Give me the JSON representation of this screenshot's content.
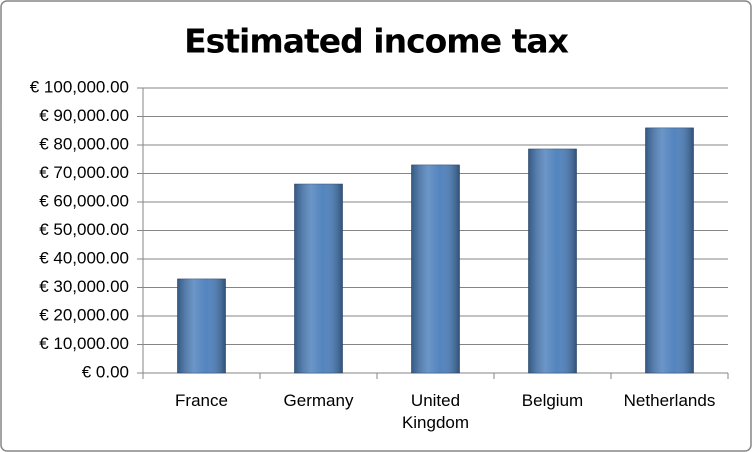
{
  "chart_data": {
    "type": "bar",
    "title": "Estimated income tax",
    "categories": [
      "France",
      "Germany",
      "United Kingdom",
      "Belgium",
      "Netherlands"
    ],
    "values": [
      33000,
      66300,
      73000,
      78600,
      86000
    ],
    "color": "#4a7ebb",
    "ylim": [
      0,
      100000
    ],
    "yticks": [
      {
        "value": 0,
        "label": "€ 0.00"
      },
      {
        "value": 10000,
        "label": "€ 10,000.00"
      },
      {
        "value": 20000,
        "label": "€ 20,000.00"
      },
      {
        "value": 30000,
        "label": "€ 30,000.00"
      },
      {
        "value": 40000,
        "label": "€ 40,000.00"
      },
      {
        "value": 50000,
        "label": "€ 50,000.00"
      },
      {
        "value": 60000,
        "label": "€ 60,000.00"
      },
      {
        "value": 70000,
        "label": "€ 70,000.00"
      },
      {
        "value": 80000,
        "label": "€ 80,000.00"
      },
      {
        "value": 90000,
        "label": "€ 90,000.00"
      },
      {
        "value": 100000,
        "label": "€ 100,000.00"
      }
    ],
    "grid": true
  }
}
